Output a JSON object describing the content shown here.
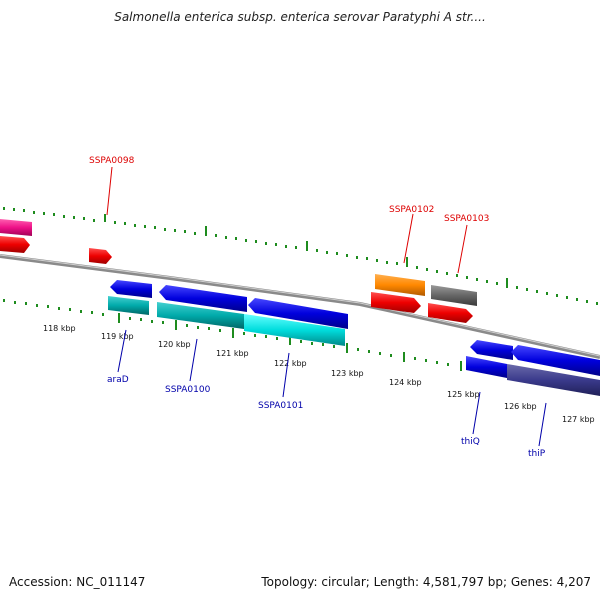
{
  "title": "Salmonella enterica subsp. enterica serovar Paratyphi A str....",
  "footer": {
    "accession": "Accession: NC_011147",
    "stats": "Topology: circular; Length: 4,581,797 bp; Genes: 4,207"
  },
  "kbp_labels": [
    "118 kbp",
    "119 kbp",
    "120 kbp",
    "121 kbp",
    "122 kbp",
    "123 kbp",
    "124 kbp",
    "125 kbp",
    "126 kbp",
    "127 kbp"
  ],
  "genes_forward": [
    "SSPA0098",
    "SSPA0102",
    "SSPA0103"
  ],
  "genes_reverse": [
    "araD",
    "SSPA0100",
    "SSPA0101",
    "thiQ",
    "thiP"
  ],
  "colors": {
    "backbone": "#8a8a8a",
    "tick": "#1e8c1e",
    "cds_red": "#ee0000",
    "cds_blue": "#0000dd",
    "cds_cyan": "#00cccc",
    "cds_orange": "#ff8800",
    "cds_gray": "#666666",
    "cds_pink": "#ee1188",
    "cds_slate": "#3a3a8c",
    "label_red": "#dd0000",
    "label_blue": "#0000aa"
  }
}
